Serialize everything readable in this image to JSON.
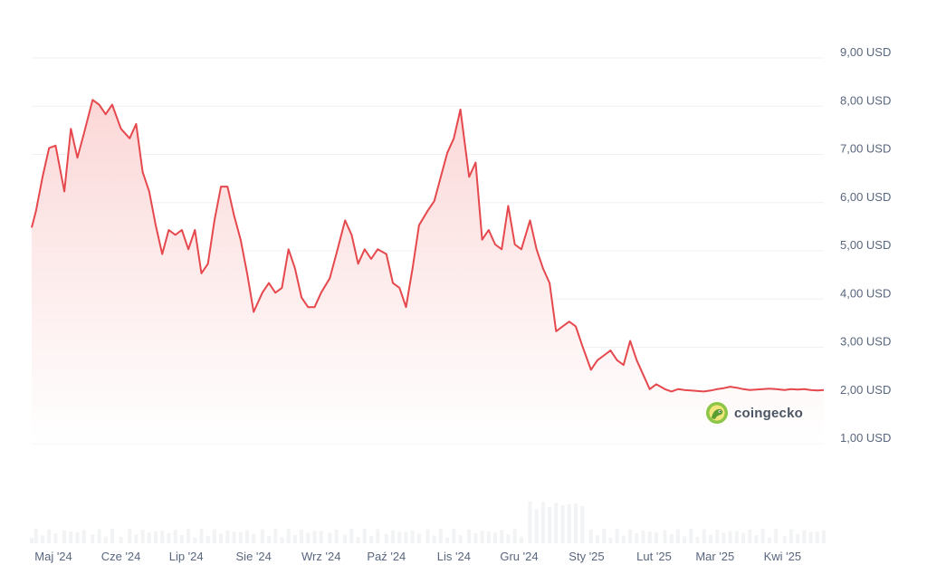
{
  "brand": {
    "name": "coingecko",
    "icon": "gecko-logo-icon"
  },
  "colors": {
    "line": "#e5484d",
    "fill_top": "#fbd5d5",
    "fill_bottom": "#ffffff",
    "volume": "#e9ebee",
    "grid": "#eef0f3"
  },
  "chart_data": {
    "type": "area",
    "title": "",
    "xlabel": "",
    "ylabel": "",
    "y_unit": "USD",
    "ylim": [
      0.2,
      9.3
    ],
    "yticks": [
      1,
      2,
      3,
      4,
      5,
      6,
      7,
      8,
      9
    ],
    "ytick_labels": [
      "1,00 USD",
      "2,00 USD",
      "3,00 USD",
      "4,00 USD",
      "5,00 USD",
      "6,00 USD",
      "7,00 USD",
      "8,00 USD",
      "9,00 USD"
    ],
    "xlim": [
      "2024-04-21",
      "2025-04-20"
    ],
    "xticks": [
      "2024-05-01",
      "2024-06-01",
      "2024-07-01",
      "2024-08-01",
      "2024-09-01",
      "2024-10-01",
      "2024-11-01",
      "2024-12-01",
      "2025-01-01",
      "2025-02-01",
      "2025-03-01",
      "2025-04-01"
    ],
    "xtick_labels": [
      "Maj '24",
      "Cze '24",
      "Lip '24",
      "Sie '24",
      "Wrz '24",
      "Paź '24",
      "Lis '24",
      "Gru '24",
      "Sty '25",
      "Lut '25",
      "Mar '25",
      "Kwi '25"
    ],
    "grid": true,
    "legend": "none",
    "series": [
      {
        "x": [
          "2024-04-21",
          "2024-04-23",
          "2024-04-26",
          "2024-04-29",
          "2024-05-02",
          "2024-05-06",
          "2024-05-09",
          "2024-05-12",
          "2024-05-15",
          "2024-05-19",
          "2024-05-22",
          "2024-05-25",
          "2024-05-28",
          "2024-06-01",
          "2024-06-05",
          "2024-06-08",
          "2024-06-11",
          "2024-06-14",
          "2024-06-17",
          "2024-06-20",
          "2024-06-23",
          "2024-06-26",
          "2024-06-29",
          "2024-07-02",
          "2024-07-05",
          "2024-07-08",
          "2024-07-11",
          "2024-07-14",
          "2024-07-17",
          "2024-07-20",
          "2024-07-23",
          "2024-07-26",
          "2024-07-29",
          "2024-08-01",
          "2024-08-05",
          "2024-08-08",
          "2024-08-11",
          "2024-08-14",
          "2024-08-17",
          "2024-08-20",
          "2024-08-23",
          "2024-08-26",
          "2024-08-29",
          "2024-09-01",
          "2024-09-05",
          "2024-09-08",
          "2024-09-12",
          "2024-09-15",
          "2024-09-18",
          "2024-09-21",
          "2024-09-24",
          "2024-09-27",
          "2024-10-01",
          "2024-10-04",
          "2024-10-07",
          "2024-10-10",
          "2024-10-13",
          "2024-10-16",
          "2024-10-20",
          "2024-10-23",
          "2024-10-26",
          "2024-10-29",
          "2024-11-01",
          "2024-11-04",
          "2024-11-08",
          "2024-11-11",
          "2024-11-14",
          "2024-11-17",
          "2024-11-20",
          "2024-11-23",
          "2024-11-26",
          "2024-11-29",
          "2024-12-02",
          "2024-12-06",
          "2024-12-09",
          "2024-12-12",
          "2024-12-15",
          "2024-12-18",
          "2024-12-21",
          "2024-12-24",
          "2024-12-27",
          "2024-12-30",
          "2025-01-03",
          "2025-01-06",
          "2025-01-09",
          "2025-01-12",
          "2025-01-15",
          "2025-01-18",
          "2025-01-21",
          "2025-01-24",
          "2025-01-27",
          "2025-01-30",
          "2025-02-02",
          "2025-02-06",
          "2025-02-09",
          "2025-02-12",
          "2025-02-15",
          "2025-02-18",
          "2025-02-21",
          "2025-02-24",
          "2025-02-27",
          "2025-03-02",
          "2025-03-05",
          "2025-03-08",
          "2025-03-11",
          "2025-03-14",
          "2025-03-17",
          "2025-03-20",
          "2025-03-23",
          "2025-03-26",
          "2025-03-29",
          "2025-04-02",
          "2025-04-05",
          "2025-04-08",
          "2025-04-11",
          "2025-04-14",
          "2025-04-17",
          "2025-04-20"
        ],
        "values": [
          5.35,
          5.7,
          6.4,
          7.0,
          7.05,
          6.1,
          7.4,
          6.8,
          7.3,
          8.0,
          7.9,
          7.7,
          7.9,
          7.4,
          7.2,
          7.5,
          6.5,
          6.1,
          5.4,
          4.8,
          5.3,
          5.2,
          5.3,
          4.9,
          5.3,
          4.4,
          4.6,
          5.5,
          6.2,
          6.2,
          5.6,
          5.1,
          4.4,
          3.6,
          4.0,
          4.2,
          4.0,
          4.1,
          4.9,
          4.5,
          3.9,
          3.7,
          3.7,
          4.0,
          4.3,
          4.8,
          5.5,
          5.2,
          4.6,
          4.9,
          4.7,
          4.9,
          4.8,
          4.2,
          4.1,
          3.7,
          4.5,
          5.4,
          5.7,
          5.9,
          6.4,
          6.9,
          7.2,
          7.8,
          6.4,
          6.7,
          5.1,
          5.3,
          5.0,
          4.9,
          5.8,
          5.0,
          4.9,
          5.5,
          4.9,
          4.5,
          4.2,
          3.2,
          3.3,
          3.4,
          3.3,
          2.9,
          2.4,
          2.6,
          2.7,
          2.8,
          2.6,
          2.5,
          3.0,
          2.6,
          2.3,
          2.0,
          2.1,
          2.0,
          1.95,
          2.0,
          1.98,
          1.97,
          1.96,
          1.95,
          1.97,
          2.0,
          2.02,
          2.05,
          2.03,
          2.0,
          1.98,
          1.99,
          2.0,
          2.01,
          2.0,
          1.98,
          2.0,
          1.99,
          2.0,
          1.98,
          1.97,
          1.98
        ]
      }
    ]
  }
}
